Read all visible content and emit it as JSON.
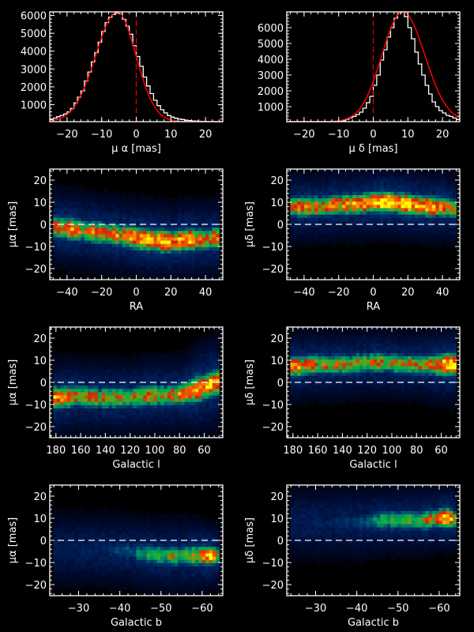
{
  "chart_data": [
    {
      "id": "hist-mu-alpha",
      "type": "histogram",
      "xlabel": "μ α [mas]",
      "ylabel": "",
      "xlim": [
        -25,
        25
      ],
      "ylim": [
        50,
        6200
      ],
      "xticks": [
        -20,
        -10,
        0,
        10,
        20
      ],
      "xtick_labels": [
        "−20",
        "−10",
        "0",
        "10",
        "20"
      ],
      "yticks": [
        1000,
        2000,
        3000,
        4000,
        5000,
        6000
      ],
      "ytick_labels": [
        "1000",
        "2000",
        "3000",
        "4000",
        "5000",
        "6000"
      ],
      "reference_line_x": 0,
      "fit": {
        "kind": "gaussian-like",
        "peak_x": -5.5,
        "peak_y": 6150,
        "sigma_left": 6.2,
        "sigma_right": 5.4
      },
      "bin_width": 1,
      "bins_x": [
        -25,
        -24,
        -23,
        -22,
        -21,
        -20,
        -19,
        -18,
        -17,
        -16,
        -15,
        -14,
        -13,
        -12,
        -11,
        -10,
        -9,
        -8,
        -7,
        -6,
        -5,
        -4,
        -3,
        -2,
        -1,
        0,
        1,
        2,
        3,
        4,
        5,
        6,
        7,
        8,
        9,
        10,
        11,
        12,
        13,
        14,
        15,
        16,
        17,
        18,
        19,
        20,
        21,
        22,
        23,
        24
      ],
      "counts": [
        170,
        250,
        330,
        400,
        480,
        600,
        790,
        1100,
        1420,
        1770,
        2330,
        2830,
        3400,
        3920,
        4500,
        5100,
        5600,
        5900,
        6050,
        6150,
        6100,
        5780,
        5400,
        4950,
        4300,
        3700,
        3150,
        2550,
        2050,
        1620,
        1250,
        950,
        720,
        540,
        390,
        300,
        240,
        200,
        170,
        130,
        110,
        90,
        80,
        70,
        60,
        55,
        55,
        55,
        50,
        50
      ]
    },
    {
      "id": "hist-mu-delta",
      "type": "histogram",
      "xlabel": "μ δ [mas]",
      "ylabel": "",
      "xlim": [
        -25,
        25
      ],
      "ylim": [
        50,
        7000
      ],
      "xticks": [
        -20,
        -10,
        0,
        10,
        20
      ],
      "xtick_labels": [
        "−20",
        "−10",
        "0",
        "10",
        "20"
      ],
      "yticks": [
        1000,
        2000,
        3000,
        4000,
        5000,
        6000
      ],
      "ytick_labels": [
        "1000",
        "2000",
        "3000",
        "4000",
        "5000",
        "6000"
      ],
      "reference_line_x": 0,
      "fit": {
        "kind": "gaussian-like",
        "peak_x": 8.5,
        "peak_y": 6950,
        "sigma_left": 6.0,
        "sigma_right": 6.4
      },
      "bin_width": 1,
      "bins_x": [
        -25,
        -24,
        -23,
        -22,
        -21,
        -20,
        -19,
        -18,
        -17,
        -16,
        -15,
        -14,
        -13,
        -12,
        -11,
        -10,
        -9,
        -8,
        -7,
        -6,
        -5,
        -4,
        -3,
        -2,
        -1,
        0,
        1,
        2,
        3,
        4,
        5,
        6,
        7,
        8,
        9,
        10,
        11,
        12,
        13,
        14,
        15,
        16,
        17,
        18,
        19,
        20,
        21,
        22,
        23,
        24
      ],
      "counts": [
        50,
        50,
        50,
        50,
        50,
        50,
        50,
        50,
        50,
        50,
        50,
        50,
        50,
        50,
        50,
        60,
        100,
        200,
        300,
        380,
        500,
        650,
        900,
        1250,
        1650,
        2350,
        3000,
        3950,
        4600,
        5400,
        6000,
        6600,
        6900,
        7000,
        6700,
        6000,
        5300,
        4450,
        3700,
        3000,
        2350,
        1800,
        1300,
        1000,
        750,
        600,
        450,
        380,
        280,
        180
      ]
    },
    {
      "id": "heat-ra-mualpha",
      "type": "heatmap",
      "xlabel": "RA",
      "ylabel": "μα [mas]",
      "xlim": [
        -50,
        50
      ],
      "ylim": [
        -25,
        25
      ],
      "xticks": [
        -40,
        -20,
        0,
        20,
        40
      ],
      "xtick_labels": [
        "−40",
        "−20",
        "0",
        "20",
        "40"
      ],
      "yticks": [
        -20,
        -10,
        0,
        10,
        20
      ],
      "ytick_labels": [
        "−20",
        "−10",
        "0",
        "10",
        "20"
      ],
      "reference_line_y": 0,
      "x_bins": 50,
      "y_bins": 34,
      "x_coverage": [
        -48,
        48
      ],
      "ridge": {
        "description": "mean proper motion vs x",
        "x": [
          -48,
          -40,
          -30,
          -20,
          -10,
          0,
          6,
          10,
          20,
          30,
          40,
          48
        ],
        "y": [
          -1,
          -2,
          -3,
          -4,
          -5,
          -6,
          -7,
          -7,
          -8,
          -7,
          -7,
          -6
        ],
        "width": [
          6,
          6,
          6,
          6,
          6,
          6,
          6,
          6,
          6,
          6,
          6,
          6
        ],
        "intensity": [
          0.7,
          0.8,
          0.65,
          0.8,
          0.7,
          0.85,
          1.0,
          0.95,
          0.9,
          0.9,
          0.75,
          0.75
        ]
      }
    },
    {
      "id": "heat-ra-mudelta",
      "type": "heatmap",
      "xlabel": "RA",
      "ylabel": "μδ [mas]",
      "xlim": [
        -50,
        50
      ],
      "ylim": [
        -25,
        25
      ],
      "xticks": [
        -40,
        -20,
        0,
        20,
        40
      ],
      "xtick_labels": [
        "−40",
        "−20",
        "0",
        "20",
        "40"
      ],
      "yticks": [
        -20,
        -10,
        0,
        10,
        20
      ],
      "ytick_labels": [
        "−20",
        "−10",
        "0",
        "10",
        "20"
      ],
      "reference_line_y": 0,
      "x_bins": 50,
      "y_bins": 34,
      "x_coverage": [
        -48,
        48
      ],
      "ridge": {
        "description": "mean proper motion vs x",
        "x": [
          -48,
          -40,
          -30,
          -20,
          -10,
          0,
          6,
          10,
          20,
          30,
          40,
          48
        ],
        "y": [
          8,
          8,
          8,
          9,
          9,
          10,
          10,
          10,
          9,
          8,
          8,
          7
        ],
        "width": [
          5.5,
          5.5,
          5.5,
          5.5,
          5.5,
          5.5,
          5.5,
          5.5,
          5.5,
          5.5,
          5.5,
          5.5
        ],
        "intensity": [
          0.7,
          0.75,
          0.7,
          0.8,
          0.8,
          0.85,
          1.0,
          1.0,
          0.95,
          0.9,
          0.75,
          0.7
        ]
      }
    },
    {
      "id": "heat-gl-mualpha",
      "type": "heatmap",
      "xlabel": "Galactic l",
      "ylabel": "μα [mas]",
      "xlim": [
        185,
        45
      ],
      "ylim": [
        -25,
        25
      ],
      "xticks": [
        180,
        160,
        140,
        120,
        100,
        80,
        60
      ],
      "xtick_labels": [
        "180",
        "160",
        "140",
        "120",
        "100",
        "80",
        "60"
      ],
      "yticks": [
        -20,
        -10,
        0,
        10,
        20
      ],
      "ytick_labels": [
        "−20",
        "−10",
        "0",
        "10",
        "20"
      ],
      "reference_line_y": 0,
      "x_bins": 50,
      "y_bins": 34,
      "x_coverage": [
        182,
        48
      ],
      "ridge": {
        "description": "mean proper motion vs x",
        "x": [
          182,
          175,
          165,
          150,
          135,
          120,
          105,
          90,
          75,
          65,
          55,
          48
        ],
        "y": [
          -7,
          -7,
          -6,
          -7,
          -7,
          -7,
          -6,
          -6,
          -5,
          -3,
          -1,
          0
        ],
        "width": [
          6,
          6,
          6,
          6,
          6,
          6,
          6,
          6,
          6,
          7,
          7,
          7
        ],
        "intensity": [
          0.85,
          0.75,
          0.75,
          0.65,
          0.6,
          0.6,
          0.62,
          0.6,
          0.75,
          0.85,
          1.0,
          0.9
        ]
      }
    },
    {
      "id": "heat-gl-mudelta",
      "type": "heatmap",
      "xlabel": "Galactic l",
      "ylabel": "μδ [mas]",
      "xlim": [
        185,
        45
      ],
      "ylim": [
        -25,
        25
      ],
      "xticks": [
        180,
        160,
        140,
        120,
        100,
        80,
        60
      ],
      "xtick_labels": [
        "180",
        "160",
        "140",
        "120",
        "100",
        "80",
        "60"
      ],
      "yticks": [
        -20,
        -10,
        0,
        10,
        20
      ],
      "ytick_labels": [
        "−20",
        "−10",
        "0",
        "10",
        "20"
      ],
      "reference_line_y": 0,
      "x_bins": 50,
      "y_bins": 34,
      "x_coverage": [
        182,
        48
      ],
      "ridge": {
        "description": "mean proper motion vs x",
        "x": [
          182,
          175,
          165,
          150,
          135,
          120,
          105,
          90,
          75,
          65,
          55,
          48
        ],
        "y": [
          7,
          7,
          8,
          8,
          8,
          9,
          9,
          8,
          8,
          8,
          8,
          8
        ],
        "width": [
          5.5,
          5.5,
          5.5,
          5.5,
          5.5,
          5.5,
          5.5,
          5.5,
          5.5,
          6,
          6,
          6
        ],
        "intensity": [
          0.9,
          0.75,
          0.7,
          0.6,
          0.6,
          0.6,
          0.62,
          0.58,
          0.72,
          0.8,
          1.0,
          0.85
        ]
      }
    },
    {
      "id": "heat-gb-mualpha",
      "type": "heatmap",
      "xlabel": "Galactic b",
      "ylabel": "μα [mas]",
      "xlim": [
        -23,
        -65
      ],
      "ylim": [
        -25,
        25
      ],
      "xticks": [
        -30,
        -40,
        -50,
        -60
      ],
      "xtick_labels": [
        "−30",
        "−40",
        "−50",
        "−60"
      ],
      "yticks": [
        -20,
        -10,
        0,
        10,
        20
      ],
      "ytick_labels": [
        "−20",
        "−10",
        "0",
        "10",
        "20"
      ],
      "reference_line_y": 0,
      "x_bins": 50,
      "y_bins": 34,
      "x_coverage": [
        -24,
        -64
      ],
      "ridge": {
        "description": "mean proper motion vs x",
        "x": [
          -24,
          -30,
          -36,
          -42,
          -46,
          -50,
          -54,
          -57,
          -60,
          -62,
          -63,
          -64
        ],
        "y": [
          -4,
          -4,
          -4,
          -5,
          -6,
          -7,
          -7,
          -7,
          -7,
          -7,
          -7,
          -7
        ],
        "width": [
          6,
          6,
          6,
          6,
          6,
          6,
          6,
          6,
          5.5,
          5,
          5,
          5
        ],
        "intensity": [
          0.12,
          0.15,
          0.18,
          0.25,
          0.45,
          0.5,
          0.5,
          0.6,
          0.75,
          1.0,
          0.95,
          0.55
        ]
      }
    },
    {
      "id": "heat-gb-mudelta",
      "type": "heatmap",
      "xlabel": "Galactic b",
      "ylabel": "μδ [mas]",
      "xlim": [
        -23,
        -65
      ],
      "ylim": [
        -25,
        25
      ],
      "xticks": [
        -30,
        -40,
        -50,
        -60
      ],
      "xtick_labels": [
        "−30",
        "−40",
        "−50",
        "−60"
      ],
      "yticks": [
        -20,
        -10,
        0,
        10,
        20
      ],
      "ytick_labels": [
        "−20",
        "−10",
        "0",
        "10",
        "20"
      ],
      "reference_line_y": 0,
      "x_bins": 50,
      "y_bins": 34,
      "x_coverage": [
        -24,
        -64
      ],
      "ridge": {
        "description": "mean proper motion vs x",
        "x": [
          -24,
          -30,
          -36,
          -42,
          -46,
          -50,
          -54,
          -57,
          -60,
          -62,
          -63,
          -64
        ],
        "y": [
          8,
          8,
          8,
          8,
          9,
          9,
          9,
          9,
          10,
          10,
          10,
          9
        ],
        "width": [
          6,
          6,
          6,
          6,
          5.5,
          5.5,
          5.5,
          5.5,
          5,
          5,
          5,
          5
        ],
        "intensity": [
          0.12,
          0.15,
          0.18,
          0.25,
          0.45,
          0.5,
          0.5,
          0.6,
          0.75,
          1.0,
          0.95,
          0.55
        ]
      }
    }
  ],
  "colors": {
    "background": "#000000",
    "axes": "#ffffff",
    "histogram_steps": "#ffffff",
    "fit_curve": "#ff0000",
    "reference_line_hist": "#e00000",
    "reference_line_heat": "#ffffff",
    "colormap": [
      "#000000",
      "#000a30",
      "#00205a",
      "#003a70",
      "#00706a",
      "#00a060",
      "#10b040",
      "#70a010",
      "#d02010",
      "#f04000",
      "#f07a00",
      "#ffb000",
      "#ffff00"
    ]
  }
}
